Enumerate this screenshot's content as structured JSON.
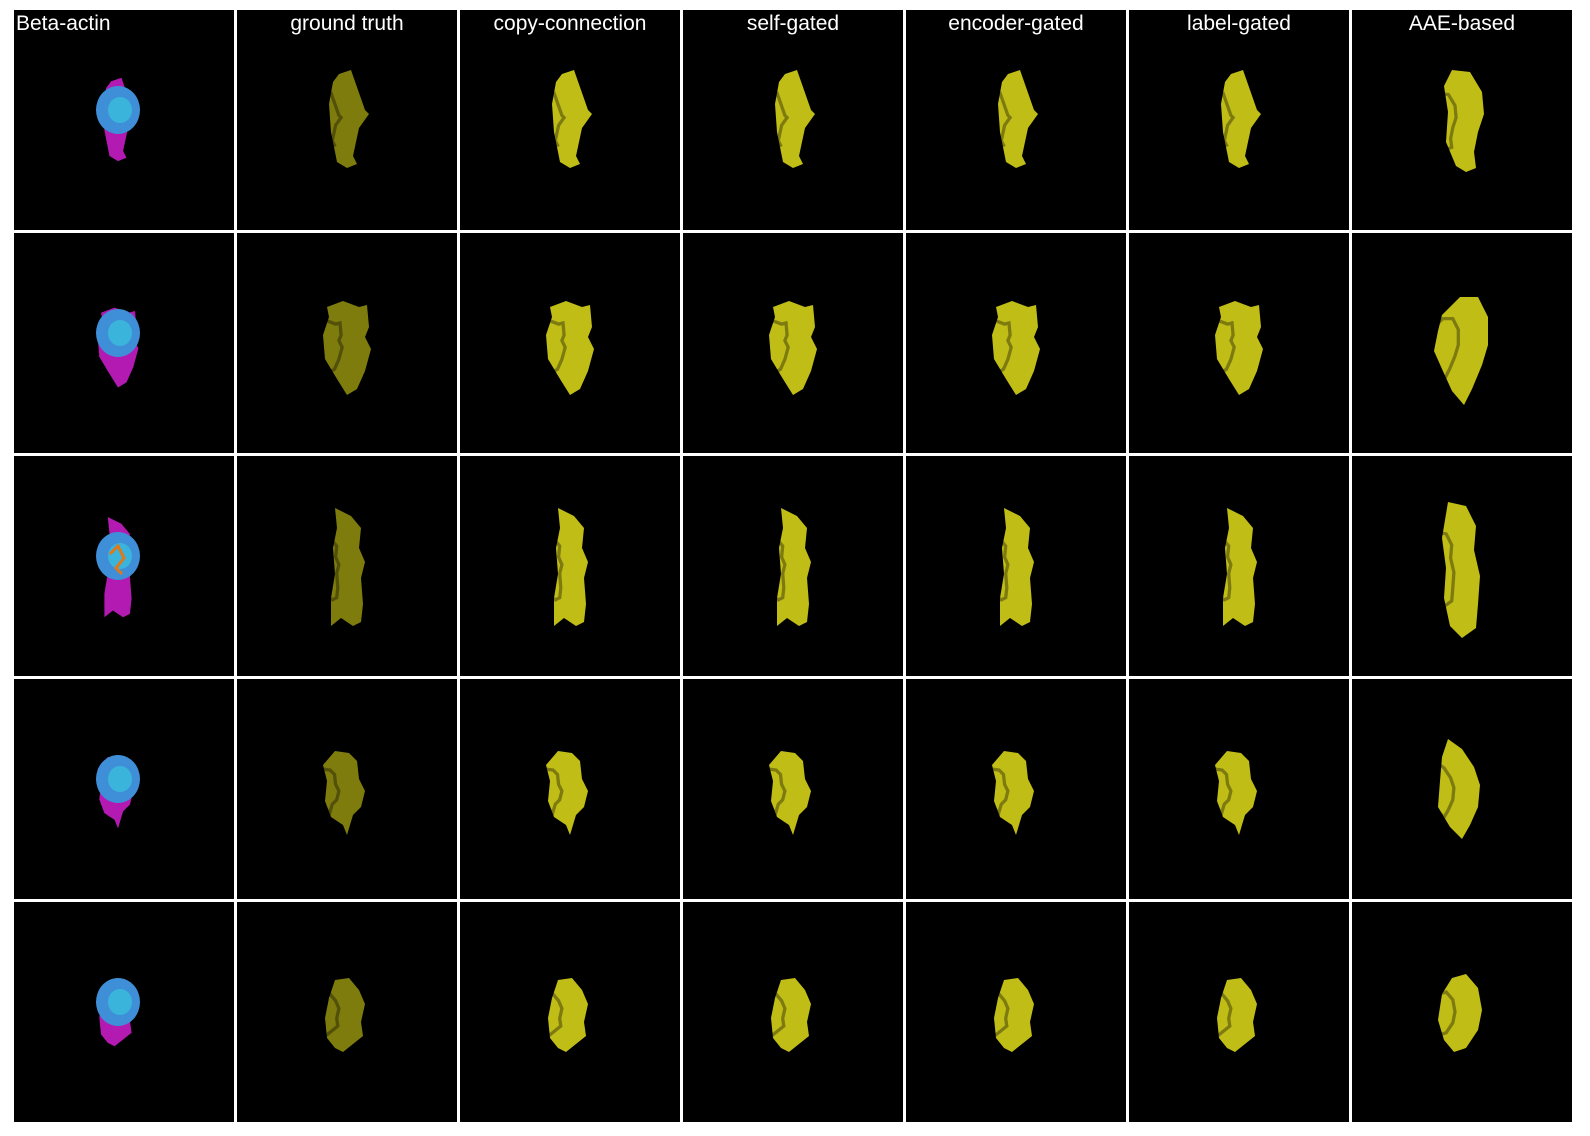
{
  "columns": [
    {
      "key": "beta",
      "label": "Beta-actin",
      "kind": "merge"
    },
    {
      "key": "gt",
      "label": "ground truth",
      "kind": "gt"
    },
    {
      "key": "copy",
      "label": "copy-connection",
      "kind": "pred"
    },
    {
      "key": "self",
      "label": "self-gated",
      "kind": "pred"
    },
    {
      "key": "enc",
      "label": "encoder-gated",
      "kind": "pred"
    },
    {
      "key": "label",
      "label": "label-gated",
      "kind": "pred"
    },
    {
      "key": "aae",
      "label": "AAE-based",
      "kind": "aae"
    }
  ],
  "rows": [
    {
      "id": "cell-1",
      "shape": "tall"
    },
    {
      "id": "cell-2",
      "shape": "wide"
    },
    {
      "id": "cell-3",
      "shape": "long"
    },
    {
      "id": "cell-4",
      "shape": "star"
    },
    {
      "id": "cell-5",
      "shape": "round"
    }
  ],
  "colors": {
    "background": "#000000",
    "separator": "#ffffff",
    "actin_prediction": "#d6d21a",
    "actin_ground_truth": "#b5b014",
    "membrane": "#d21fd0",
    "nucleus": "#3f8fd8",
    "nucleus_highlight": "#39d4e0",
    "nucleolus": "#e0781a"
  }
}
